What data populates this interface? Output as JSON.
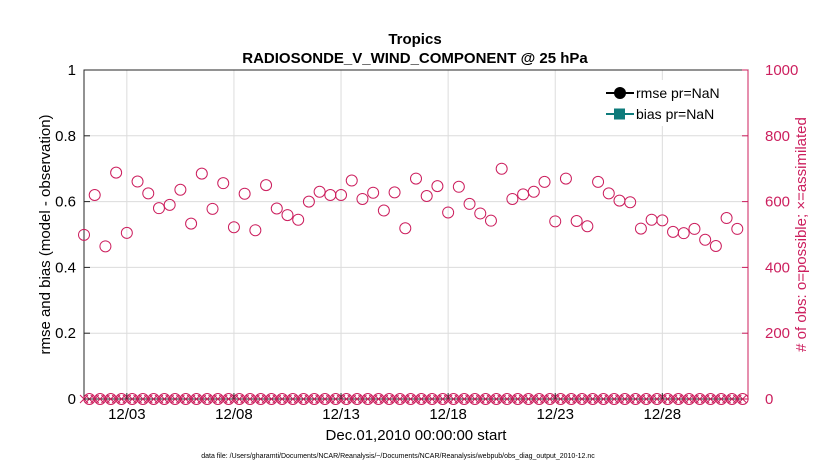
{
  "chart_data": {
    "type": "scatter",
    "title": "Tropics",
    "subtitle": "RADIOSONDE_V_WIND_COMPONENT @ 25 hPa",
    "xlabel": "Dec.01,2010 00:00:00 start",
    "ylabel_left": "rmse and bias (model - observation)",
    "ylabel_right": "# of obs: o=possible; ×=assimilated",
    "x_tick_labels": [
      "12/03",
      "12/08",
      "12/13",
      "12/18",
      "12/23",
      "12/28"
    ],
    "x_tick_values": [
      3,
      8,
      13,
      18,
      23,
      28
    ],
    "xlim": [
      1,
      32
    ],
    "ylim_left": [
      0,
      1
    ],
    "ylim_right": [
      0,
      1000
    ],
    "y_left_ticks": [
      "0",
      "0.2",
      "0.4",
      "0.6",
      "0.8",
      "1"
    ],
    "y_right_ticks": [
      "0",
      "200",
      "400",
      "600",
      "800",
      "1000"
    ],
    "grid": true,
    "legend_position": "top-right",
    "legend": [
      {
        "label": "rmse pr=NaN",
        "color": "#000000",
        "marker": "circle"
      },
      {
        "label": "bias pr=NaN",
        "color": "#0e7b7b",
        "marker": "square"
      }
    ],
    "series": [
      {
        "name": "possible",
        "axis": "right",
        "marker": "open-circle",
        "color": "#cc1f5e",
        "x": [
          1.0,
          1.25,
          1.5,
          1.75,
          2.0,
          2.25,
          2.5,
          2.75,
          3.0,
          3.25,
          3.5,
          3.75,
          4.0,
          4.25,
          4.5,
          4.75,
          5.0,
          5.25,
          5.5,
          5.75,
          6.0,
          6.25,
          6.5,
          6.75,
          7.0,
          7.25,
          7.5,
          7.75,
          8.0,
          8.25,
          8.5,
          8.75,
          9.0,
          9.25,
          9.5,
          9.75,
          10.0,
          10.25,
          10.5,
          10.75,
          11.0,
          11.25,
          11.5,
          11.75,
          12.0,
          12.25,
          12.5,
          12.75,
          13.0,
          13.25,
          13.5,
          13.75,
          14.0,
          14.25,
          14.5,
          14.75,
          15.0,
          15.25,
          15.5,
          15.75,
          16.0,
          16.25,
          16.5,
          16.75,
          17.0,
          17.25,
          17.5,
          17.75,
          18.0,
          18.25,
          18.5,
          18.75,
          19.0,
          19.25,
          19.5,
          19.75,
          20.0,
          20.25,
          20.5,
          20.75,
          21.0,
          21.25,
          21.5,
          21.75,
          22.0,
          22.25,
          22.5,
          22.75,
          23.0,
          23.25,
          23.5,
          23.75,
          24.0,
          24.25,
          24.5,
          24.75,
          25.0,
          25.25,
          25.5,
          25.75,
          26.0,
          26.25,
          26.5,
          26.75,
          27.0,
          27.25,
          27.5,
          27.75,
          28.0,
          28.25,
          28.5,
          28.75,
          29.0,
          29.25,
          29.5,
          29.75,
          30.0,
          30.25,
          30.5,
          30.75,
          31.0,
          31.25,
          31.5,
          31.75
        ],
        "y": [
          499,
          0,
          620,
          0,
          464,
          0,
          688,
          0,
          505,
          0,
          661,
          0,
          625,
          0,
          580,
          0,
          590,
          0,
          636,
          0,
          533,
          0,
          685,
          0,
          578,
          0,
          656,
          0,
          522,
          0,
          624,
          0,
          513,
          0,
          650,
          0,
          579,
          0,
          559,
          0,
          545,
          0,
          600,
          0,
          630,
          0,
          620,
          0,
          620,
          0,
          664,
          0,
          608,
          0,
          627,
          0,
          573,
          0,
          628,
          0,
          519,
          0,
          670,
          0,
          617,
          0,
          647,
          0,
          567,
          0,
          645,
          0,
          593,
          0,
          564,
          0,
          542,
          0,
          700,
          0,
          608,
          0,
          622,
          0,
          630,
          0,
          660,
          0,
          540,
          0,
          670,
          0,
          541,
          0,
          525,
          0,
          660,
          0,
          625,
          0,
          603,
          0,
          598,
          0,
          518,
          0,
          545,
          0,
          543,
          0,
          508,
          0,
          504,
          0,
          517,
          0,
          484,
          0,
          465,
          0,
          550,
          0,
          517,
          0
        ]
      },
      {
        "name": "assimilated",
        "axis": "right",
        "marker": "x",
        "color": "#cc1f5e",
        "x": [
          1.0,
          1.25,
          1.5,
          1.75,
          2.0,
          2.25,
          2.5,
          2.75,
          3.0,
          3.25,
          3.5,
          3.75,
          4.0,
          4.25,
          4.5,
          4.75,
          5.0,
          5.25,
          5.5,
          5.75,
          6.0,
          6.25,
          6.5,
          6.75,
          7.0,
          7.25,
          7.5,
          7.75,
          8.0,
          8.25,
          8.5,
          8.75,
          9.0,
          9.25,
          9.5,
          9.75,
          10.0,
          10.25,
          10.5,
          10.75,
          11.0,
          11.25,
          11.5,
          11.75,
          12.0,
          12.25,
          12.5,
          12.75,
          13.0,
          13.25,
          13.5,
          13.75,
          14.0,
          14.25,
          14.5,
          14.75,
          15.0,
          15.25,
          15.5,
          15.75,
          16.0,
          16.25,
          16.5,
          16.75,
          17.0,
          17.25,
          17.5,
          17.75,
          18.0,
          18.25,
          18.5,
          18.75,
          19.0,
          19.25,
          19.5,
          19.75,
          20.0,
          20.25,
          20.5,
          20.75,
          21.0,
          21.25,
          21.5,
          21.75,
          22.0,
          22.25,
          22.5,
          22.75,
          23.0,
          23.25,
          23.5,
          23.75,
          24.0,
          24.25,
          24.5,
          24.75,
          25.0,
          25.25,
          25.5,
          25.75,
          26.0,
          26.25,
          26.5,
          26.75,
          27.0,
          27.25,
          27.5,
          27.75,
          28.0,
          28.25,
          28.5,
          28.75,
          29.0,
          29.25,
          29.5,
          29.75,
          30.0,
          30.25,
          30.5,
          30.75,
          31.0,
          31.25,
          31.5,
          31.75
        ],
        "y": [
          0,
          0,
          0,
          0,
          0,
          0,
          0,
          0,
          0,
          0,
          0,
          0,
          0,
          0,
          0,
          0,
          0,
          0,
          0,
          0,
          0,
          0,
          0,
          0,
          0,
          0,
          0,
          0,
          0,
          0,
          0,
          0,
          0,
          0,
          0,
          0,
          0,
          0,
          0,
          0,
          0,
          0,
          0,
          0,
          0,
          0,
          0,
          0,
          0,
          0,
          0,
          0,
          0,
          0,
          0,
          0,
          0,
          0,
          0,
          0,
          0,
          0,
          0,
          0,
          0,
          0,
          0,
          0,
          0,
          0,
          0,
          0,
          0,
          0,
          0,
          0,
          0,
          0,
          0,
          0,
          0,
          0,
          0,
          0,
          0,
          0,
          0,
          0,
          0,
          0,
          0,
          0,
          0,
          0,
          0,
          0,
          0,
          0,
          0,
          0,
          0,
          0,
          0,
          0,
          0,
          0,
          0,
          0,
          0,
          0,
          0,
          0,
          0,
          0,
          0,
          0,
          0,
          0,
          0,
          0,
          0,
          0,
          0,
          0
        ]
      }
    ],
    "footnote": "data file: /Users/gharamti/Documents/NCAR/Reanalysis/~/Documents/NCAR/Reanalysis/webpub/obs_diag_output_2010-12.nc"
  },
  "colors": {
    "obs": "#cc1f5e",
    "rmse": "#000000",
    "bias": "#0e7b7b",
    "grid": "#dcdcdc",
    "axis": "#262626"
  }
}
